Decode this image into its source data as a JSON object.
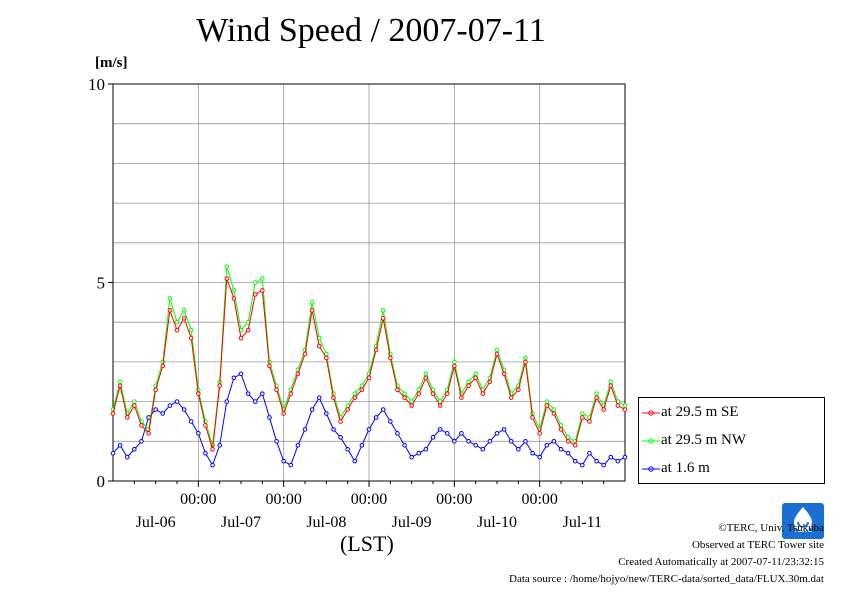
{
  "chart_data": {
    "type": "line",
    "title": "Wind Speed / 2007-07-11",
    "ylabel": "[m/s]",
    "xlabel": "(LST)",
    "ylim": [
      0,
      10
    ],
    "y_ticks": [
      "0",
      "5",
      "10"
    ],
    "x_range_hours": [
      0,
      144
    ],
    "x_time_ticks": [
      {
        "label": "00:00",
        "hour": 24
      },
      {
        "label": "00:00",
        "hour": 48
      },
      {
        "label": "00:00",
        "hour": 72
      },
      {
        "label": "00:00",
        "hour": 96
      },
      {
        "label": "00:00",
        "hour": 120
      }
    ],
    "x_day_labels": [
      {
        "label": "Jul-06",
        "hour": 12
      },
      {
        "label": "Jul-07",
        "hour": 36
      },
      {
        "label": "Jul-08",
        "hour": 60
      },
      {
        "label": "Jul-09",
        "hour": 84
      },
      {
        "label": "Jul-10",
        "hour": 108
      },
      {
        "label": "Jul-11",
        "hour": 132
      }
    ],
    "grid": true,
    "legend_position": "right-bottom",
    "series": [
      {
        "name": "at 29.5 m SE",
        "color": "#ff0000",
        "points": [
          [
            0,
            1.7
          ],
          [
            2,
            2.4
          ],
          [
            4,
            1.6
          ],
          [
            6,
            1.9
          ],
          [
            8,
            1.4
          ],
          [
            10,
            1.2
          ],
          [
            12,
            2.3
          ],
          [
            14,
            2.9
          ],
          [
            16,
            4.3
          ],
          [
            18,
            3.8
          ],
          [
            20,
            4.1
          ],
          [
            22,
            3.6
          ],
          [
            24,
            2.2
          ],
          [
            26,
            1.4
          ],
          [
            28,
            0.8
          ],
          [
            30,
            2.4
          ],
          [
            32,
            5.1
          ],
          [
            34,
            4.6
          ],
          [
            36,
            3.6
          ],
          [
            38,
            3.8
          ],
          [
            40,
            4.7
          ],
          [
            42,
            4.8
          ],
          [
            44,
            2.9
          ],
          [
            46,
            2.3
          ],
          [
            48,
            1.7
          ],
          [
            50,
            2.2
          ],
          [
            52,
            2.7
          ],
          [
            54,
            3.2
          ],
          [
            56,
            4.3
          ],
          [
            58,
            3.4
          ],
          [
            60,
            3.1
          ],
          [
            62,
            2.1
          ],
          [
            64,
            1.5
          ],
          [
            66,
            1.8
          ],
          [
            68,
            2.1
          ],
          [
            70,
            2.3
          ],
          [
            72,
            2.6
          ],
          [
            74,
            3.3
          ],
          [
            76,
            4.1
          ],
          [
            78,
            3.1
          ],
          [
            80,
            2.3
          ],
          [
            82,
            2.1
          ],
          [
            84,
            1.9
          ],
          [
            86,
            2.2
          ],
          [
            88,
            2.6
          ],
          [
            90,
            2.2
          ],
          [
            92,
            1.9
          ],
          [
            94,
            2.2
          ],
          [
            96,
            2.9
          ],
          [
            98,
            2.1
          ],
          [
            100,
            2.4
          ],
          [
            102,
            2.6
          ],
          [
            104,
            2.2
          ],
          [
            106,
            2.5
          ],
          [
            108,
            3.2
          ],
          [
            110,
            2.7
          ],
          [
            112,
            2.1
          ],
          [
            114,
            2.3
          ],
          [
            116,
            3.0
          ],
          [
            118,
            1.6
          ],
          [
            120,
            1.2
          ],
          [
            122,
            1.9
          ],
          [
            124,
            1.7
          ],
          [
            126,
            1.3
          ],
          [
            128,
            1.0
          ],
          [
            130,
            0.9
          ],
          [
            132,
            1.6
          ],
          [
            134,
            1.5
          ],
          [
            136,
            2.1
          ],
          [
            138,
            1.8
          ],
          [
            140,
            2.4
          ],
          [
            142,
            1.9
          ],
          [
            144,
            1.8
          ]
        ]
      },
      {
        "name": "at 29.5 m NW",
        "color": "#00ff00",
        "points": [
          [
            0,
            1.8
          ],
          [
            2,
            2.5
          ],
          [
            4,
            1.7
          ],
          [
            6,
            2.0
          ],
          [
            8,
            1.5
          ],
          [
            10,
            1.3
          ],
          [
            12,
            2.4
          ],
          [
            14,
            3.0
          ],
          [
            16,
            4.6
          ],
          [
            18,
            4.0
          ],
          [
            20,
            4.3
          ],
          [
            22,
            3.8
          ],
          [
            24,
            2.3
          ],
          [
            26,
            1.5
          ],
          [
            28,
            0.9
          ],
          [
            30,
            2.5
          ],
          [
            32,
            5.4
          ],
          [
            34,
            4.8
          ],
          [
            36,
            3.8
          ],
          [
            38,
            4.0
          ],
          [
            40,
            5.0
          ],
          [
            42,
            5.1
          ],
          [
            44,
            3.0
          ],
          [
            46,
            2.4
          ],
          [
            48,
            1.8
          ],
          [
            50,
            2.3
          ],
          [
            52,
            2.8
          ],
          [
            54,
            3.3
          ],
          [
            56,
            4.5
          ],
          [
            58,
            3.6
          ],
          [
            60,
            3.2
          ],
          [
            62,
            2.2
          ],
          [
            64,
            1.6
          ],
          [
            66,
            1.9
          ],
          [
            68,
            2.2
          ],
          [
            70,
            2.4
          ],
          [
            72,
            2.7
          ],
          [
            74,
            3.4
          ],
          [
            76,
            4.3
          ],
          [
            78,
            3.2
          ],
          [
            80,
            2.4
          ],
          [
            82,
            2.2
          ],
          [
            84,
            2.0
          ],
          [
            86,
            2.3
          ],
          [
            88,
            2.7
          ],
          [
            90,
            2.3
          ],
          [
            92,
            2.0
          ],
          [
            94,
            2.3
          ],
          [
            96,
            3.0
          ],
          [
            98,
            2.2
          ],
          [
            100,
            2.5
          ],
          [
            102,
            2.7
          ],
          [
            104,
            2.3
          ],
          [
            106,
            2.6
          ],
          [
            108,
            3.3
          ],
          [
            110,
            2.8
          ],
          [
            112,
            2.2
          ],
          [
            114,
            2.4
          ],
          [
            116,
            3.1
          ],
          [
            118,
            1.7
          ],
          [
            120,
            1.3
          ],
          [
            122,
            2.0
          ],
          [
            124,
            1.8
          ],
          [
            126,
            1.4
          ],
          [
            128,
            1.1
          ],
          [
            130,
            1.0
          ],
          [
            132,
            1.7
          ],
          [
            134,
            1.6
          ],
          [
            136,
            2.2
          ],
          [
            138,
            1.9
          ],
          [
            140,
            2.5
          ],
          [
            142,
            2.0
          ],
          [
            144,
            1.9
          ]
        ]
      },
      {
        "name": "at 1.6 m",
        "color": "#0000ff",
        "points": [
          [
            0,
            0.7
          ],
          [
            2,
            0.9
          ],
          [
            4,
            0.6
          ],
          [
            6,
            0.8
          ],
          [
            8,
            1.0
          ],
          [
            10,
            1.6
          ],
          [
            12,
            1.8
          ],
          [
            14,
            1.7
          ],
          [
            16,
            1.9
          ],
          [
            18,
            2.0
          ],
          [
            20,
            1.8
          ],
          [
            22,
            1.5
          ],
          [
            24,
            1.2
          ],
          [
            26,
            0.7
          ],
          [
            28,
            0.4
          ],
          [
            30,
            0.9
          ],
          [
            32,
            2.0
          ],
          [
            34,
            2.6
          ],
          [
            36,
            2.7
          ],
          [
            38,
            2.2
          ],
          [
            40,
            2.0
          ],
          [
            42,
            2.2
          ],
          [
            44,
            1.6
          ],
          [
            46,
            1.0
          ],
          [
            48,
            0.5
          ],
          [
            50,
            0.4
          ],
          [
            52,
            0.9
          ],
          [
            54,
            1.3
          ],
          [
            56,
            1.8
          ],
          [
            58,
            2.1
          ],
          [
            60,
            1.7
          ],
          [
            62,
            1.3
          ],
          [
            64,
            1.1
          ],
          [
            66,
            0.8
          ],
          [
            68,
            0.5
          ],
          [
            70,
            0.9
          ],
          [
            72,
            1.3
          ],
          [
            74,
            1.6
          ],
          [
            76,
            1.8
          ],
          [
            78,
            1.5
          ],
          [
            80,
            1.2
          ],
          [
            82,
            0.9
          ],
          [
            84,
            0.6
          ],
          [
            86,
            0.7
          ],
          [
            88,
            0.8
          ],
          [
            90,
            1.1
          ],
          [
            92,
            1.3
          ],
          [
            94,
            1.2
          ],
          [
            96,
            1.0
          ],
          [
            98,
            1.2
          ],
          [
            100,
            1.0
          ],
          [
            102,
            0.9
          ],
          [
            104,
            0.8
          ],
          [
            106,
            1.0
          ],
          [
            108,
            1.2
          ],
          [
            110,
            1.3
          ],
          [
            112,
            1.0
          ],
          [
            114,
            0.8
          ],
          [
            116,
            1.0
          ],
          [
            118,
            0.7
          ],
          [
            120,
            0.6
          ],
          [
            122,
            0.9
          ],
          [
            124,
            1.0
          ],
          [
            126,
            0.8
          ],
          [
            128,
            0.7
          ],
          [
            130,
            0.5
          ],
          [
            132,
            0.4
          ],
          [
            134,
            0.7
          ],
          [
            136,
            0.5
          ],
          [
            138,
            0.4
          ],
          [
            140,
            0.6
          ],
          [
            142,
            0.5
          ],
          [
            144,
            0.6
          ]
        ]
      }
    ]
  },
  "credits": {
    "copyright": "©TERC, Univ. Tsukuba",
    "observed": "Observed at TERC Tower site",
    "created": "Created Automatically at 2007-07-11/23:32:15",
    "source": "Data source : /home/hojyo/new/TERC-data/sorted_data/FLUX.30m.dat"
  },
  "logo": {
    "text": "TERC",
    "color": "#1a6fd1"
  }
}
